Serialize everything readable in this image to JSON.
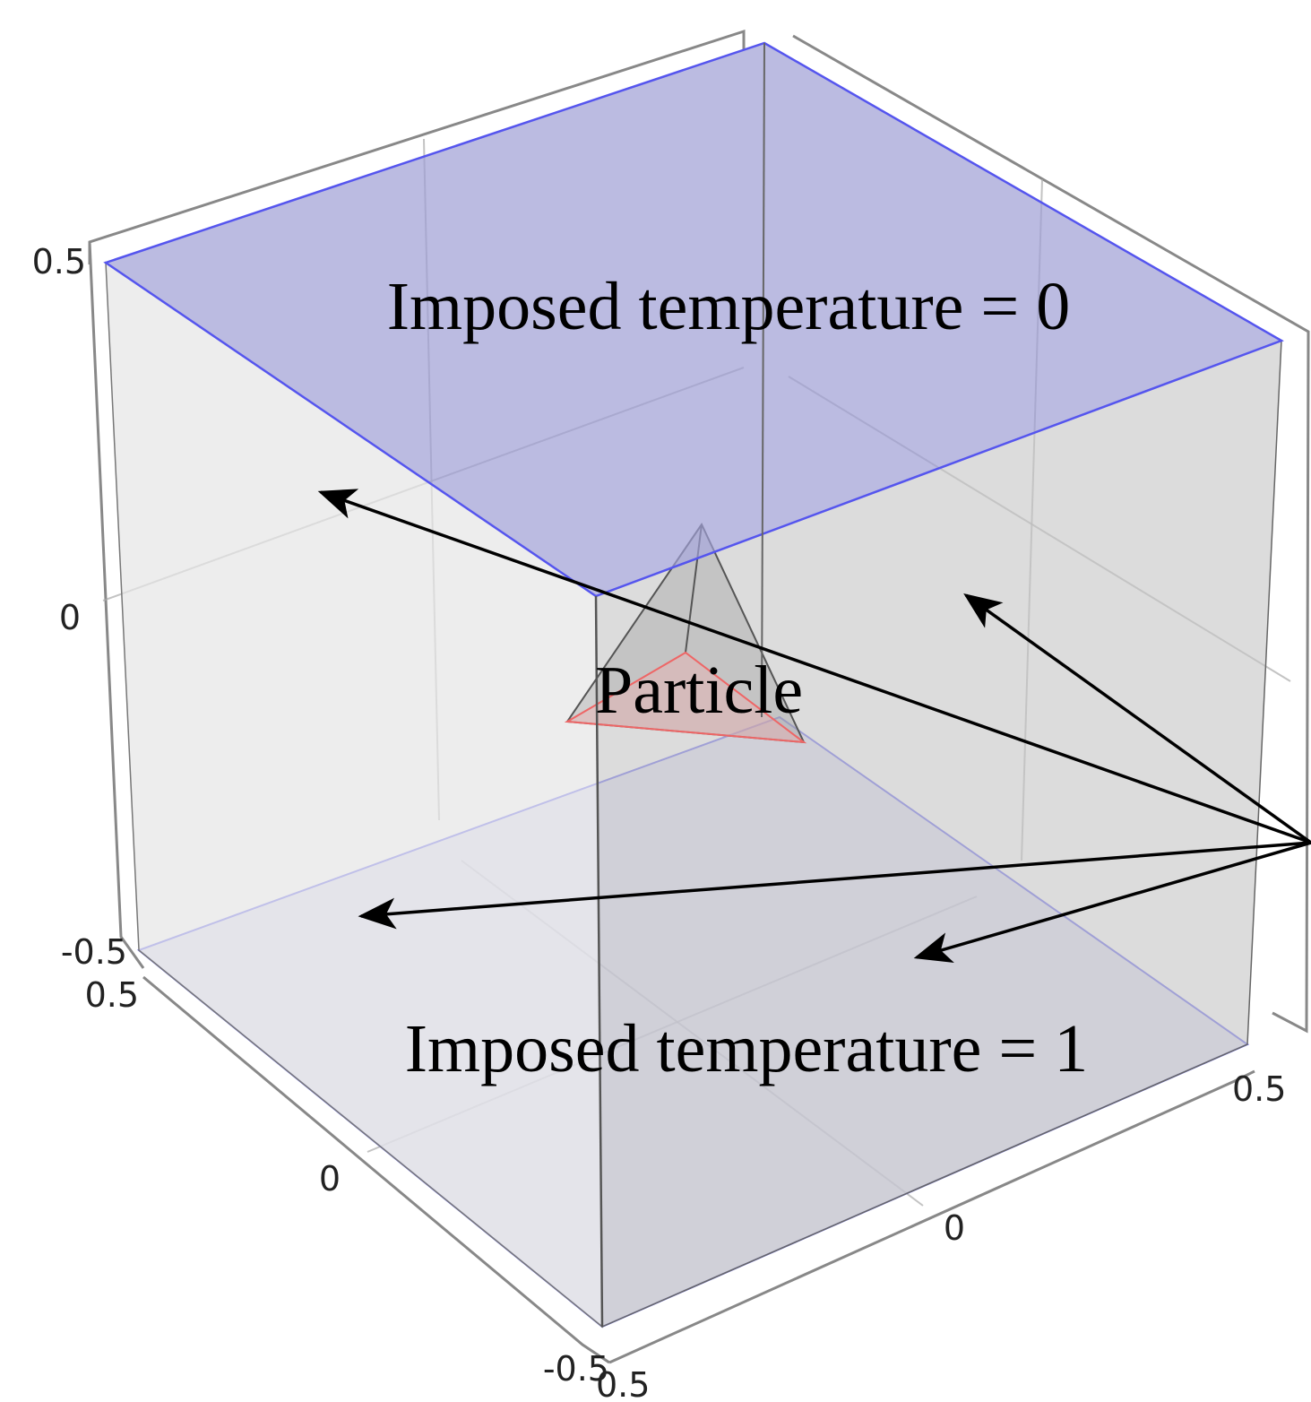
{
  "labels": {
    "top": "Imposed temperature = 0",
    "particle": "Particle",
    "bottom": "Imposed temperature = 1"
  },
  "axes": {
    "vertical": [
      "0.5",
      "0",
      "-0.5"
    ],
    "left": [
      "0.5",
      "0",
      "-0.5"
    ],
    "right": [
      "0.5",
      "0",
      "0.5"
    ]
  }
}
